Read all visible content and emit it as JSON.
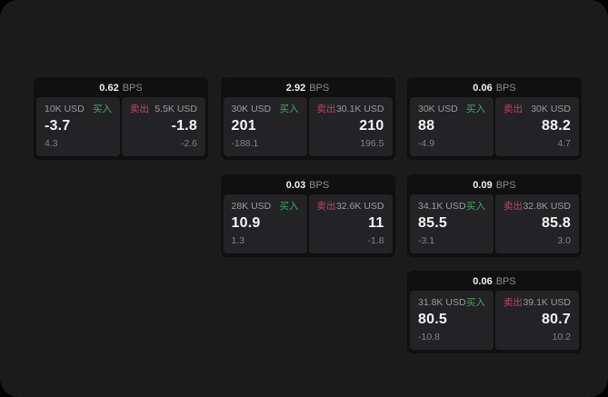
{
  "labels": {
    "buy": "买入",
    "sell": "卖出",
    "bps_unit": "BPS"
  },
  "colors": {
    "page_bg": "#1b1b1c",
    "card_bg": "#101011",
    "panel_bg": "#232326",
    "buy_green": "#3fa862",
    "sell_red": "#c04265",
    "text_primary": "#f4f4f5",
    "text_secondary": "#9b9b9d",
    "text_muted": "#828285"
  },
  "cards": [
    {
      "col": 1,
      "row": 1,
      "bps": "0.62",
      "buy": {
        "size": "10K USD",
        "value": "-3.7",
        "sub": "4.3"
      },
      "sell": {
        "size": "5.5K USD",
        "value": "-1.8",
        "sub": "-2.6"
      }
    },
    {
      "col": 2,
      "row": 1,
      "bps": "2.92",
      "buy": {
        "size": "30K USD",
        "value": "201",
        "sub": "-188.1"
      },
      "sell": {
        "size": "30.1K USD",
        "value": "210",
        "sub": "196.5"
      }
    },
    {
      "col": 3,
      "row": 1,
      "bps": "0.06",
      "buy": {
        "size": "30K USD",
        "value": "88",
        "sub": "-4.9"
      },
      "sell": {
        "size": "30K USD",
        "value": "88.2",
        "sub": "4.7"
      }
    },
    {
      "col": 2,
      "row": 2,
      "bps": "0.03",
      "buy": {
        "size": "28K USD",
        "value": "10.9",
        "sub": "1.3"
      },
      "sell": {
        "size": "32.6K USD",
        "value": "11",
        "sub": "-1.8"
      }
    },
    {
      "col": 3,
      "row": 2,
      "bps": "0.09",
      "buy": {
        "size": "34.1K USD",
        "value": "85.5",
        "sub": "-3.1"
      },
      "sell": {
        "size": "32.8K USD",
        "value": "85.8",
        "sub": "3.0"
      }
    },
    {
      "col": 3,
      "row": 3,
      "bps": "0.06",
      "buy": {
        "size": "31.8K USD",
        "value": "80.5",
        "sub": "-10.8"
      },
      "sell": {
        "size": "39.1K USD",
        "value": "80.7",
        "sub": "10.2"
      }
    }
  ]
}
